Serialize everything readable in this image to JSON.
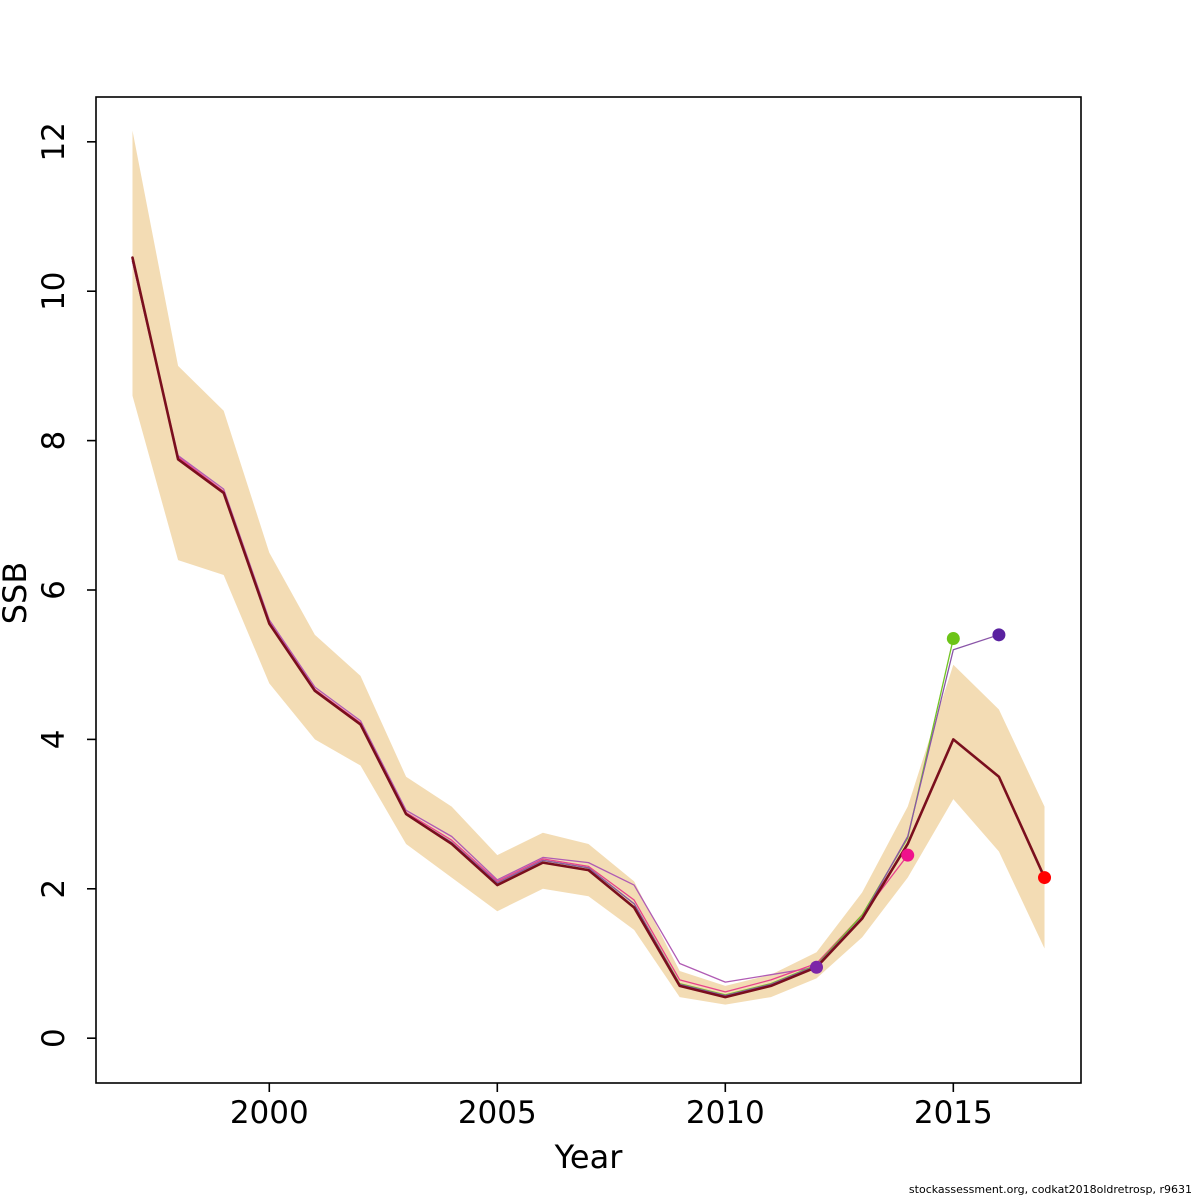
{
  "footer": {
    "text": "stockassessment.org, codkat2018oldretrosp, r9631"
  },
  "chart_data": {
    "type": "line",
    "title": "",
    "xlabel": "Year",
    "ylabel": "SSB",
    "xlim": [
      1996.2,
      2017.8
    ],
    "ylim": [
      -0.6,
      12.6
    ],
    "xticks": [
      2000,
      2005,
      2010,
      2015
    ],
    "yticks": [
      0,
      2,
      4,
      6,
      8,
      10,
      12
    ],
    "grid": false,
    "legend": "none",
    "band": {
      "name": "confidence-band",
      "color": "#f3dcb4",
      "x": [
        1997,
        1998,
        1999,
        2000,
        2001,
        2002,
        2003,
        2004,
        2005,
        2006,
        2007,
        2008,
        2009,
        2010,
        2011,
        2012,
        2013,
        2014,
        2015,
        2016,
        2017
      ],
      "upper": [
        12.15,
        9.0,
        8.4,
        6.5,
        5.4,
        4.85,
        3.5,
        3.1,
        2.45,
        2.75,
        2.6,
        2.1,
        0.9,
        0.7,
        0.85,
        1.15,
        1.95,
        3.1,
        5.0,
        4.4,
        3.1
      ],
      "lower": [
        8.6,
        6.4,
        6.2,
        4.75,
        4.0,
        3.65,
        2.6,
        2.15,
        1.7,
        2.0,
        1.9,
        1.45,
        0.55,
        0.45,
        0.55,
        0.8,
        1.35,
        2.15,
        3.2,
        2.5,
        1.2
      ]
    },
    "series": [
      {
        "name": "retro-peel-2012",
        "color": "#b05bb4",
        "width": 1.3,
        "endpoint_color": "#7d26a8",
        "x": [
          1997,
          1998,
          1999,
          2000,
          2001,
          2002,
          2003,
          2004,
          2005,
          2006,
          2007,
          2008,
          2009,
          2010,
          2011,
          2012
        ],
        "y": [
          10.4,
          7.8,
          7.35,
          5.6,
          4.7,
          4.25,
          3.05,
          2.7,
          2.12,
          2.42,
          2.35,
          2.05,
          1.0,
          0.75,
          0.85,
          0.95
        ]
      },
      {
        "name": "retro-peel-2014",
        "color": "#e8418c",
        "width": 1.3,
        "endpoint_color": "#f0128c",
        "x": [
          1997,
          1998,
          1999,
          2000,
          2001,
          2002,
          2003,
          2004,
          2005,
          2006,
          2007,
          2008,
          2009,
          2010,
          2011,
          2012,
          2013,
          2014
        ],
        "y": [
          10.4,
          7.78,
          7.32,
          5.57,
          4.67,
          4.22,
          3.02,
          2.65,
          2.1,
          2.4,
          2.3,
          1.85,
          0.78,
          0.62,
          0.78,
          1.0,
          1.65,
          2.45
        ]
      },
      {
        "name": "retro-peel-2015",
        "color": "#74c425",
        "width": 1.3,
        "endpoint_color": "#6cc417",
        "x": [
          1997,
          1998,
          1999,
          2000,
          2001,
          2002,
          2003,
          2004,
          2005,
          2006,
          2007,
          2008,
          2009,
          2010,
          2011,
          2012,
          2013,
          2014,
          2015
        ],
        "y": [
          10.42,
          7.75,
          7.3,
          5.55,
          4.65,
          4.2,
          3.0,
          2.62,
          2.08,
          2.38,
          2.28,
          1.8,
          0.73,
          0.58,
          0.73,
          0.98,
          1.65,
          2.68,
          5.35
        ]
      },
      {
        "name": "retro-peel-2016",
        "color": "#8a55a8",
        "width": 1.3,
        "endpoint_color": "#5a22a0",
        "x": [
          1997,
          1998,
          1999,
          2000,
          2001,
          2002,
          2003,
          2004,
          2005,
          2006,
          2007,
          2008,
          2009,
          2010,
          2011,
          2012,
          2013,
          2014,
          2015,
          2016
        ],
        "y": [
          10.4,
          7.75,
          7.3,
          5.55,
          4.65,
          4.2,
          3.0,
          2.62,
          2.08,
          2.38,
          2.28,
          1.8,
          0.72,
          0.57,
          0.72,
          0.97,
          1.62,
          2.7,
          5.2,
          5.4
        ]
      },
      {
        "name": "final-assessment-2017",
        "color": "#7a0f1d",
        "width": 2.6,
        "endpoint_color": "#ff0000",
        "x": [
          1997,
          1998,
          1999,
          2000,
          2001,
          2002,
          2003,
          2004,
          2005,
          2006,
          2007,
          2008,
          2009,
          2010,
          2011,
          2012,
          2013,
          2014,
          2015,
          2016,
          2017
        ],
        "y": [
          10.45,
          7.75,
          7.3,
          5.55,
          4.65,
          4.2,
          3.0,
          2.6,
          2.05,
          2.35,
          2.25,
          1.75,
          0.7,
          0.55,
          0.7,
          0.95,
          1.6,
          2.6,
          4.0,
          3.5,
          2.15
        ]
      }
    ]
  }
}
